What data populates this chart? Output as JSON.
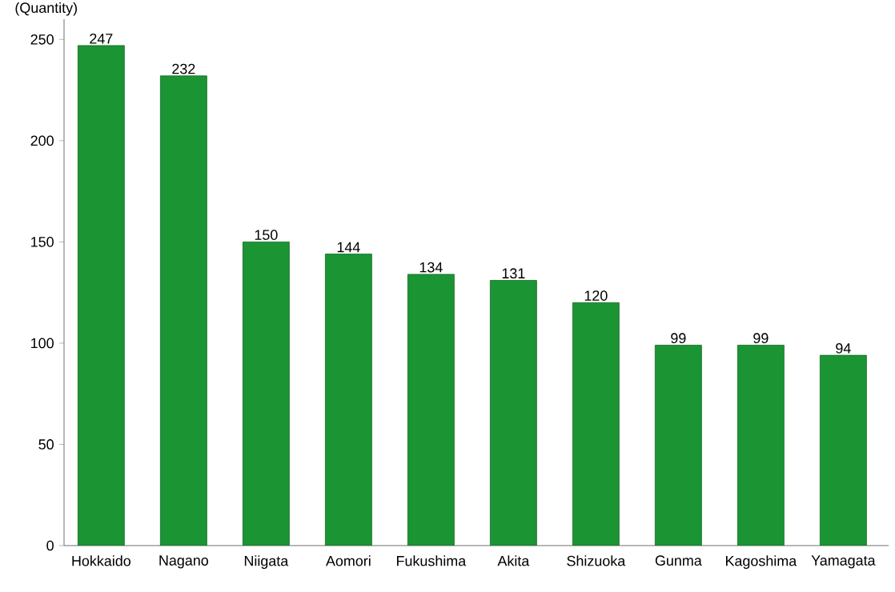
{
  "chart_data": {
    "type": "bar",
    "ylabel": "(Quantity)",
    "categories": [
      "Hokkaido",
      "Nagano",
      "Niigata",
      "Aomori",
      "Fukushima",
      "Akita",
      "Shizuoka",
      "Gunma",
      "Kagoshima",
      "Yamagata"
    ],
    "values": [
      247,
      232,
      150,
      144,
      134,
      131,
      120,
      99,
      99,
      94
    ],
    "color": "#1b9433",
    "ylim": [
      0,
      260
    ],
    "yticks": [
      0,
      50,
      100,
      150,
      200,
      250
    ],
    "data_labels": true
  }
}
